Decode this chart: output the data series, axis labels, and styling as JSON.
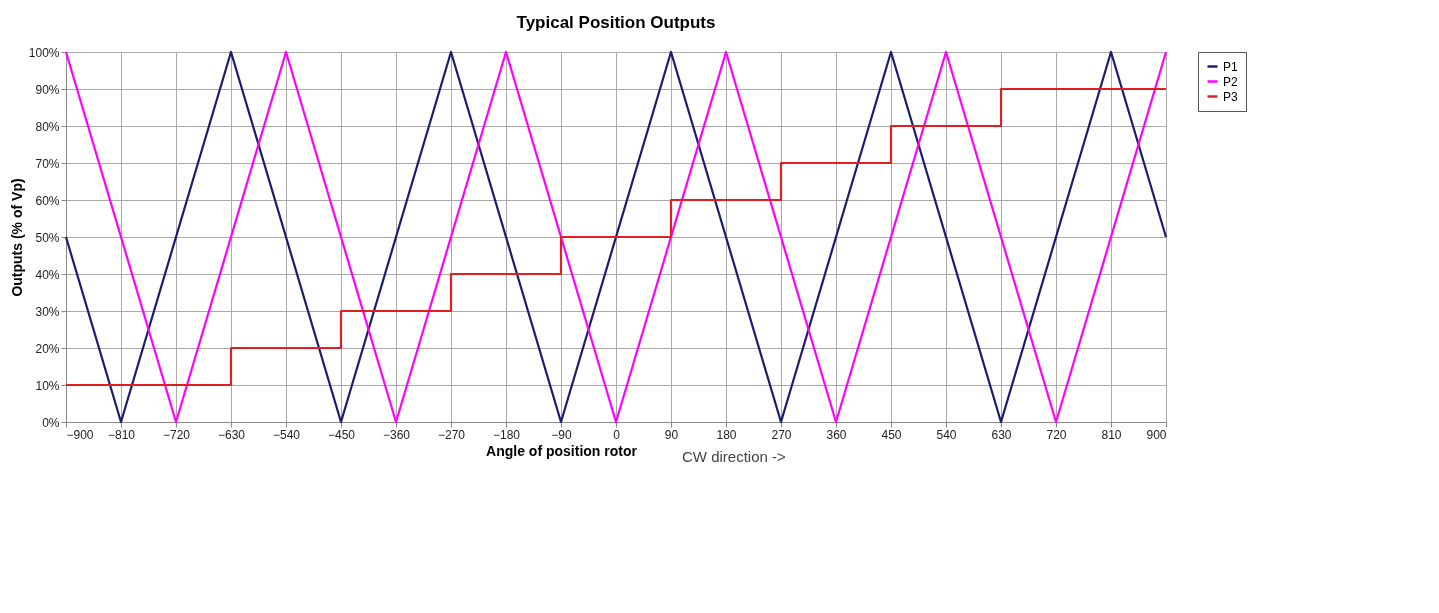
{
  "chart_data": {
    "type": "line",
    "title": "Typical Position Outputs",
    "xlabel": "Angle of position rotor",
    "ylabel": "Outputs (% of Vp)",
    "annotations": [
      "CW direction  ->"
    ],
    "series": [
      {
        "name": "P1",
        "color": "#1c1c6e",
        "x": [
          -900,
          -810,
          -630,
          -450,
          -270,
          -90,
          90,
          270,
          450,
          630,
          810,
          900
        ],
        "values": [
          50,
          0,
          100,
          0,
          100,
          0,
          100,
          0,
          100,
          0,
          100,
          50
        ]
      },
      {
        "name": "P2",
        "color": "#ff00ff",
        "x": [
          -900,
          -720,
          -540,
          -360,
          -180,
          0,
          180,
          360,
          540,
          720,
          900
        ],
        "values": [
          100,
          0,
          100,
          0,
          100,
          0,
          100,
          0,
          100,
          0,
          100
        ]
      },
      {
        "name": "P3",
        "color": "#e02020",
        "type": "step",
        "x": [
          -900,
          -630,
          -450,
          -270,
          -90,
          90,
          270,
          450,
          630,
          900
        ],
        "values": [
          10,
          20,
          30,
          40,
          50,
          60,
          70,
          80,
          90,
          90
        ]
      }
    ],
    "xlim": [
      -900,
      900
    ],
    "xticks": [
      -900,
      -810,
      -720,
      -630,
      -540,
      -450,
      -360,
      -270,
      -180,
      -90,
      0,
      90,
      180,
      270,
      360,
      450,
      540,
      630,
      720,
      810,
      900
    ],
    "ylim": [
      0,
      100
    ],
    "yticks": [
      {
        "value": 0,
        "label": "0%"
      },
      {
        "value": 10,
        "label": "10%"
      },
      {
        "value": 20,
        "label": "20%"
      },
      {
        "value": 30,
        "label": "30%"
      },
      {
        "value": 40,
        "label": "40%"
      },
      {
        "value": 50,
        "label": "50%"
      },
      {
        "value": 60,
        "label": "60%"
      },
      {
        "value": 70,
        "label": "70%"
      },
      {
        "value": 80,
        "label": "80%"
      },
      {
        "value": 90,
        "label": "90%"
      },
      {
        "value": 100,
        "label": "100%"
      }
    ],
    "grid": true,
    "legend": "right",
    "marker": "none",
    "line_style": "solid"
  }
}
